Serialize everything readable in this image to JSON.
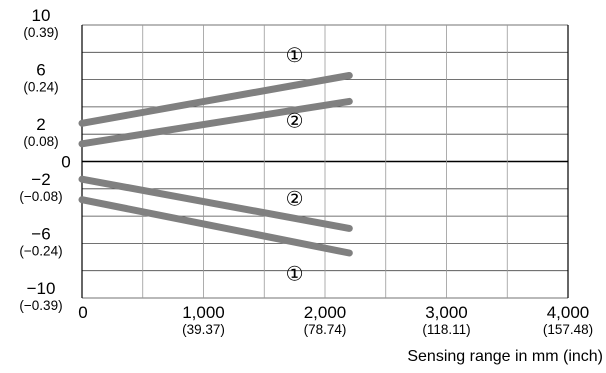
{
  "chart_data": {
    "type": "line",
    "xlabel": "Sensing range in mm (inch)",
    "ylabel": "",
    "xlim": [
      0,
      4000
    ],
    "ylim": [
      -10,
      10
    ],
    "grid": true,
    "x_ticks": [
      {
        "value": 0,
        "label": "0",
        "sub": ""
      },
      {
        "value": 1000,
        "label": "1,000",
        "sub": "(39.37)"
      },
      {
        "value": 2000,
        "label": "2,000",
        "sub": "(78.74)"
      },
      {
        "value": 3000,
        "label": "3,000",
        "sub": "(118.11)"
      },
      {
        "value": 4000,
        "label": "4,000",
        "sub": "(157.48)"
      }
    ],
    "y_ticks": [
      {
        "value": 10,
        "label": "10",
        "sub": "(0.39)"
      },
      {
        "value": 6,
        "label": "6",
        "sub": "(0.24)"
      },
      {
        "value": 2,
        "label": "2",
        "sub": "(0.08)"
      },
      {
        "value": 0,
        "label": "0",
        "sub": ""
      },
      {
        "value": -2,
        "label": "−2",
        "sub": "(−0.08)"
      },
      {
        "value": -6,
        "label": "−6",
        "sub": "(−0.24)"
      },
      {
        "value": -10,
        "label": "−10",
        "sub": "(−0.39)"
      }
    ],
    "grid_y": [
      10,
      8,
      6,
      4,
      2,
      0,
      -2,
      -4,
      -6,
      -8,
      -10
    ],
    "grid_x": [
      0,
      500,
      1000,
      1500,
      2000,
      2500,
      3000,
      3500,
      4000
    ],
    "series": [
      {
        "label": "①",
        "x": [
          0,
          2200
        ],
        "y": [
          2.8,
          6.3
        ],
        "color": "#808080"
      },
      {
        "label": "②",
        "x": [
          0,
          2200
        ],
        "y": [
          1.3,
          4.4
        ],
        "color": "#808080"
      },
      {
        "label": "②",
        "x": [
          0,
          2200
        ],
        "y": [
          -1.3,
          -4.9
        ],
        "color": "#808080"
      },
      {
        "label": "①",
        "x": [
          0,
          2200
        ],
        "y": [
          -2.8,
          -6.7
        ],
        "color": "#808080"
      }
    ],
    "annotations": [
      {
        "text": "①",
        "x": 1750,
        "y": 7.8
      },
      {
        "text": "②",
        "x": 1750,
        "y": 3.0
      },
      {
        "text": "②",
        "x": 1750,
        "y": -2.7
      },
      {
        "text": "①",
        "x": 1750,
        "y": -8.2
      }
    ]
  }
}
